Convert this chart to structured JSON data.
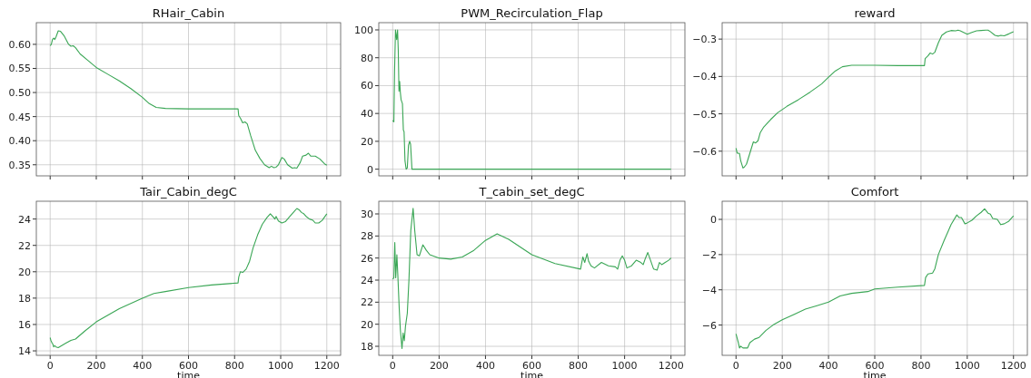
{
  "chart_data": [
    {
      "type": "line",
      "title": "RHair_Cabin",
      "color": "#3aa655",
      "grid": true,
      "tick_labels": "y",
      "xlim": [
        -60,
        1260
      ],
      "xticks": [
        0,
        200,
        400,
        600,
        800,
        1000,
        1200
      ],
      "ylim": [
        0.327,
        0.645
      ],
      "yticks": [
        {
          "value": 0.35,
          "label": "0.35"
        },
        {
          "value": 0.4,
          "label": "0.40"
        },
        {
          "value": 0.45,
          "label": "0.45"
        },
        {
          "value": 0.5,
          "label": "0.50"
        },
        {
          "value": 0.55,
          "label": "0.55"
        },
        {
          "value": 0.6,
          "label": "0.60"
        }
      ],
      "x": [
        0,
        5,
        10,
        15,
        20,
        25,
        35,
        45,
        60,
        80,
        90,
        100,
        110,
        130,
        160,
        200,
        250,
        300,
        350,
        400,
        430,
        460,
        500,
        600,
        700,
        815,
        818,
        825,
        835,
        845,
        855,
        870,
        890,
        910,
        930,
        950,
        960,
        970,
        980,
        990,
        1005,
        1015,
        1030,
        1050,
        1060,
        1070,
        1085,
        1095,
        1110,
        1120,
        1130,
        1150,
        1170,
        1190,
        1200
      ],
      "values": [
        0.597,
        0.6,
        0.61,
        0.613,
        0.61,
        0.615,
        0.628,
        0.627,
        0.618,
        0.6,
        0.596,
        0.597,
        0.593,
        0.58,
        0.568,
        0.552,
        0.538,
        0.524,
        0.508,
        0.49,
        0.477,
        0.469,
        0.467,
        0.466,
        0.466,
        0.466,
        0.452,
        0.447,
        0.437,
        0.439,
        0.435,
        0.41,
        0.38,
        0.363,
        0.35,
        0.344,
        0.347,
        0.344,
        0.345,
        0.35,
        0.365,
        0.362,
        0.35,
        0.343,
        0.344,
        0.343,
        0.355,
        0.368,
        0.37,
        0.374,
        0.368,
        0.368,
        0.362,
        0.352,
        0.349
      ]
    },
    {
      "type": "line",
      "title": "PWM_Recirculation_Flap",
      "color": "#3aa655",
      "grid": true,
      "tick_labels": "y",
      "xlim": [
        -60,
        1260
      ],
      "xticks": [
        0,
        200,
        400,
        600,
        800,
        1000,
        1200
      ],
      "ylim": [
        -4.8,
        105.2
      ],
      "yticks": [
        0,
        20,
        40,
        60,
        80,
        100
      ],
      "x": [
        0,
        5,
        8,
        12,
        17,
        21,
        24,
        27,
        30,
        33,
        36,
        42,
        46,
        49,
        53,
        58,
        63,
        68,
        73,
        77,
        83,
        90,
        1200
      ],
      "values": [
        35,
        34,
        70,
        100,
        93,
        100,
        85,
        56,
        63,
        55,
        50,
        47,
        28,
        27,
        6,
        0,
        1,
        17,
        20,
        18,
        0,
        0,
        0
      ]
    },
    {
      "type": "line",
      "title": "reward",
      "color": "#3aa655",
      "grid": true,
      "tick_labels": "y",
      "xlim": [
        -60,
        1260
      ],
      "xticks": [
        0,
        200,
        400,
        600,
        800,
        1000,
        1200
      ],
      "ylim": [
        -0.666,
        -0.256
      ],
      "yticks": [
        {
          "value": -0.6,
          "label": "−0.6"
        },
        {
          "value": -0.5,
          "label": "−0.5"
        },
        {
          "value": -0.4,
          "label": "−0.4"
        },
        {
          "value": -0.3,
          "label": "−0.3"
        }
      ],
      "x": [
        0,
        5,
        15,
        20,
        30,
        35,
        45,
        55,
        65,
        75,
        85,
        95,
        105,
        120,
        150,
        180,
        220,
        270,
        320,
        370,
        400,
        430,
        460,
        500,
        600,
        700,
        815,
        818,
        830,
        840,
        850,
        860,
        875,
        890,
        910,
        930,
        950,
        960,
        970,
        990,
        1000,
        1020,
        1040,
        1060,
        1080,
        1090,
        1100,
        1120,
        1135,
        1145,
        1160,
        1180,
        1200
      ],
      "values": [
        -0.592,
        -0.605,
        -0.606,
        -0.625,
        -0.645,
        -0.643,
        -0.635,
        -0.615,
        -0.595,
        -0.575,
        -0.578,
        -0.572,
        -0.55,
        -0.535,
        -0.515,
        -0.497,
        -0.48,
        -0.462,
        -0.442,
        -0.42,
        -0.402,
        -0.385,
        -0.374,
        -0.37,
        -0.37,
        -0.371,
        -0.371,
        -0.352,
        -0.345,
        -0.337,
        -0.34,
        -0.335,
        -0.31,
        -0.29,
        -0.281,
        -0.277,
        -0.278,
        -0.276,
        -0.278,
        -0.284,
        -0.287,
        -0.282,
        -0.278,
        -0.277,
        -0.276,
        -0.276,
        -0.28,
        -0.29,
        -0.292,
        -0.29,
        -0.291,
        -0.286,
        -0.28
      ]
    },
    {
      "type": "line",
      "title": "Tair_Cabin_degC",
      "xlabel": "time",
      "color": "#3aa655",
      "grid": true,
      "xlim": [
        -60,
        1260
      ],
      "xticks": [
        0,
        200,
        400,
        600,
        800,
        1000,
        1200
      ],
      "ylim": [
        13.66,
        25.35
      ],
      "yticks": [
        14,
        16,
        18,
        20,
        22,
        24
      ],
      "x": [
        0,
        3,
        8,
        12,
        15,
        20,
        25,
        35,
        50,
        70,
        90,
        110,
        150,
        200,
        300,
        400,
        450,
        500,
        600,
        700,
        815,
        818,
        825,
        835,
        850,
        865,
        880,
        900,
        920,
        940,
        955,
        965,
        975,
        980,
        990,
        1005,
        1020,
        1040,
        1060,
        1070,
        1080,
        1090,
        1100,
        1110,
        1125,
        1140,
        1150,
        1165,
        1180,
        1200
      ],
      "values": [
        15,
        14.8,
        14.6,
        14.5,
        14.3,
        14.4,
        14.3,
        14.25,
        14.4,
        14.6,
        14.8,
        14.9,
        15.5,
        16.2,
        17.2,
        18,
        18.35,
        18.5,
        18.8,
        19,
        19.15,
        19.6,
        20,
        19.95,
        20.2,
        20.8,
        21.8,
        22.8,
        23.6,
        24.1,
        24.4,
        24.2,
        24,
        24.2,
        23.85,
        23.7,
        23.8,
        24.2,
        24.6,
        24.8,
        24.7,
        24.5,
        24.4,
        24.2,
        24,
        23.9,
        23.7,
        23.7,
        23.9,
        24.4
      ]
    },
    {
      "type": "line",
      "title": "T_cabin_set_degC",
      "xlabel": "time",
      "color": "#3aa655",
      "grid": true,
      "xlim": [
        -60,
        1260
      ],
      "xticks": [
        0,
        200,
        400,
        600,
        800,
        1000,
        1200
      ],
      "ylim": [
        17.18,
        31.15
      ],
      "yticks": [
        18,
        20,
        22,
        24,
        26,
        28,
        30
      ],
      "x": [
        0,
        5,
        9,
        13,
        18,
        22,
        28,
        33,
        40,
        45,
        50,
        55,
        63,
        70,
        78,
        88,
        95,
        105,
        115,
        130,
        145,
        160,
        200,
        250,
        300,
        350,
        400,
        450,
        500,
        600,
        700,
        810,
        820,
        828,
        838,
        845,
        855,
        870,
        900,
        930,
        960,
        970,
        980,
        990,
        1000,
        1010,
        1030,
        1050,
        1070,
        1080,
        1090,
        1100,
        1110,
        1125,
        1140,
        1150,
        1160,
        1175,
        1190,
        1200
      ],
      "values": [
        24.1,
        24.2,
        27.4,
        24.2,
        26.3,
        24.5,
        21.5,
        19.5,
        17.8,
        19.2,
        18.5,
        19.8,
        21,
        24,
        28.5,
        30.5,
        28.5,
        26.3,
        26.2,
        27.2,
        26.7,
        26.3,
        26,
        25.9,
        26.1,
        26.7,
        27.6,
        28.2,
        27.7,
        26.3,
        25.5,
        25,
        26.1,
        25.6,
        26.4,
        25.7,
        25.3,
        25.1,
        25.6,
        25.3,
        25.2,
        25,
        25.8,
        26.2,
        25.8,
        25.1,
        25.3,
        25.8,
        25.6,
        25.4,
        26,
        26.5,
        25.9,
        25,
        24.9,
        25.6,
        25.4,
        25.6,
        25.8,
        26
      ]
    },
    {
      "type": "line",
      "title": "Comfort",
      "xlabel": "time",
      "color": "#3aa655",
      "grid": true,
      "xlim": [
        -60,
        1260
      ],
      "xticks": [
        0,
        200,
        400,
        600,
        800,
        1000,
        1200
      ],
      "ylim": [
        -7.72,
        1.03
      ],
      "yticks": [
        {
          "value": -6,
          "label": "−6"
        },
        {
          "value": -4,
          "label": "−4"
        },
        {
          "value": -2,
          "label": "−2"
        },
        0
      ],
      "x": [
        0,
        10,
        15,
        20,
        30,
        50,
        60,
        80,
        100,
        130,
        160,
        200,
        250,
        300,
        350,
        400,
        450,
        500,
        570,
        600,
        700,
        815,
        820,
        830,
        850,
        860,
        875,
        900,
        930,
        955,
        965,
        975,
        990,
        1000,
        1020,
        1040,
        1060,
        1075,
        1090,
        1100,
        1110,
        1130,
        1145,
        1160,
        1180,
        1200
      ],
      "values": [
        -6.5,
        -7,
        -7.3,
        -7.2,
        -7.3,
        -7.3,
        -7,
        -6.8,
        -6.7,
        -6.3,
        -6,
        -5.7,
        -5.4,
        -5.1,
        -4.9,
        -4.7,
        -4.35,
        -4.2,
        -4.1,
        -3.95,
        -3.85,
        -3.75,
        -3.3,
        -3.1,
        -3.05,
        -2.8,
        -2,
        -1.2,
        -0.3,
        0.25,
        0.1,
        0.1,
        -0.25,
        -0.2,
        -0.05,
        0.2,
        0.4,
        0.6,
        0.35,
        0.3,
        0.05,
        0,
        -0.3,
        -0.25,
        -0.1,
        0.2
      ]
    }
  ]
}
